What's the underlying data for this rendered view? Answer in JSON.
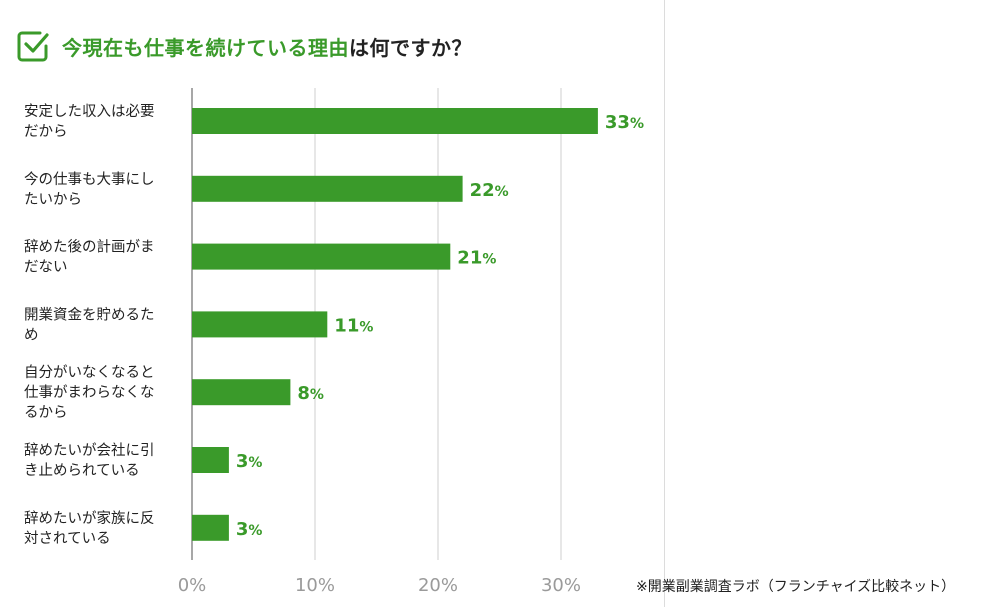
{
  "title": {
    "highlight": "今現在も仕事を続けている理由",
    "rest": "は何ですか？"
  },
  "icons": {
    "title_icon": "checkbox-check-icon"
  },
  "colors": {
    "bar": "#3a9a2a",
    "accent_text": "#3a9a2a",
    "grid": "#cfcfcf",
    "axis_text": "#9a9a9a"
  },
  "footnote": "※開業副業調査ラボ（フランチャイズ比較ネット）",
  "chart_data": {
    "type": "bar",
    "orientation": "horizontal",
    "title": "今現在も仕事を続けている理由は何ですか？",
    "categories": [
      [
        "安定した収入は必要",
        "だから"
      ],
      [
        "今の仕事も大事にし",
        "たいから"
      ],
      [
        "辞めた後の計画がま",
        "だない"
      ],
      [
        "開業資金を貯めるた",
        "め"
      ],
      [
        "自分がいなくなると",
        "仕事がまわらなくな",
        "るから"
      ],
      [
        "辞めたいが会社に引",
        "き止められている"
      ],
      [
        "辞めたいが家族に反",
        "対されている"
      ]
    ],
    "values": [
      33,
      22,
      21,
      11,
      8,
      3,
      3
    ],
    "value_labels": [
      "33",
      "22",
      "21",
      "11",
      "8",
      "3",
      "3"
    ],
    "value_unit": "%",
    "xlim": [
      0,
      40
    ],
    "xticks": [
      "0%",
      "10%",
      "20%",
      "30%"
    ],
    "grid": true,
    "legend": "none"
  }
}
